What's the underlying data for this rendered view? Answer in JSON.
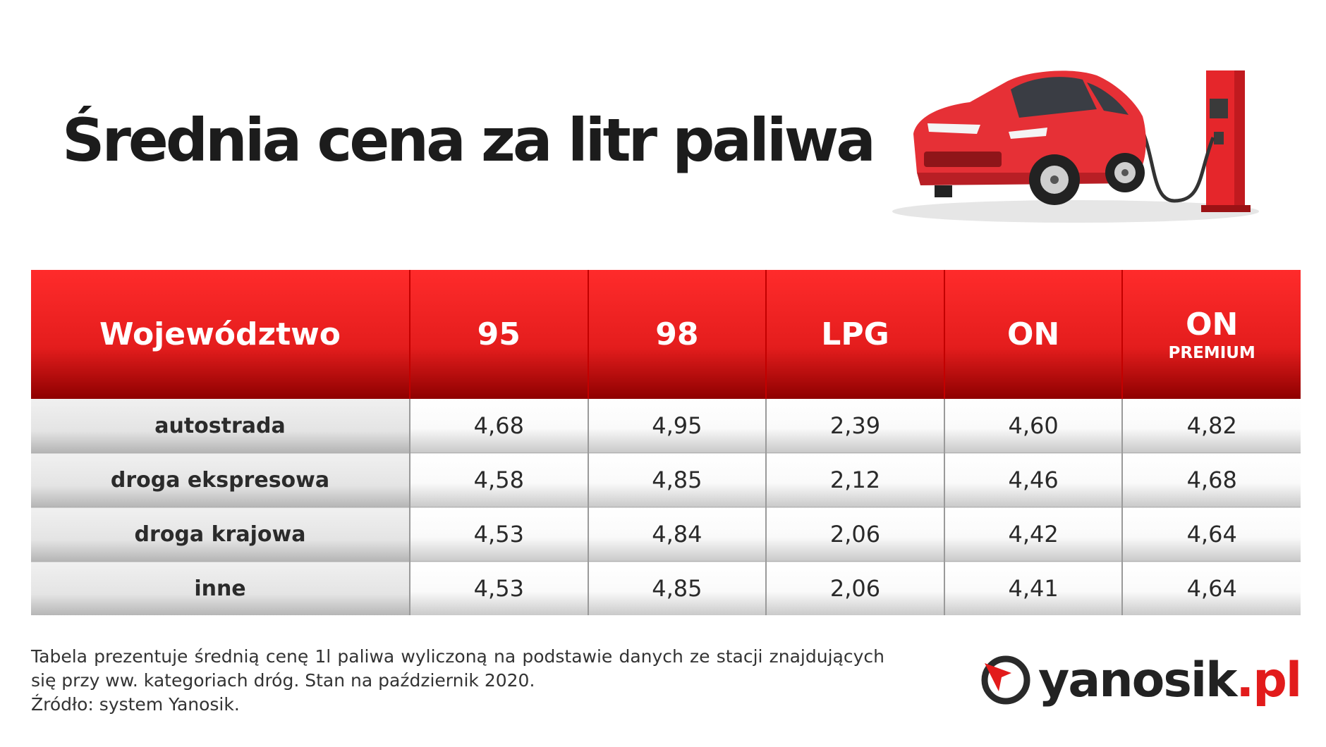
{
  "title": "Średnia cena za litr paliwa",
  "table": {
    "headers": [
      {
        "label": "Województwo",
        "sub": ""
      },
      {
        "label": "95",
        "sub": ""
      },
      {
        "label": "98",
        "sub": ""
      },
      {
        "label": "LPG",
        "sub": ""
      },
      {
        "label": "ON",
        "sub": ""
      },
      {
        "label": "ON",
        "sub": "PREMIUM"
      }
    ],
    "rows": [
      {
        "name": "autostrada",
        "values": [
          "4,68",
          "4,95",
          "2,39",
          "4,60",
          "4,82"
        ]
      },
      {
        "name": "droga ekspresowa",
        "values": [
          "4,58",
          "4,85",
          "2,12",
          "4,46",
          "4,68"
        ]
      },
      {
        "name": "droga krajowa",
        "values": [
          "4,53",
          "4,84",
          "2,06",
          "4,42",
          "4,64"
        ]
      },
      {
        "name": "inne",
        "values": [
          "4,53",
          "4,85",
          "2,06",
          "4,41",
          "4,64"
        ]
      }
    ]
  },
  "chart_data": {
    "type": "table",
    "title": "Średnia cena za litr paliwa",
    "columns": [
      "Województwo",
      "95",
      "98",
      "LPG",
      "ON",
      "ON PREMIUM"
    ],
    "rows": [
      [
        "autostrada",
        4.68,
        4.95,
        2.39,
        4.6,
        4.82
      ],
      [
        "droga ekspresowa",
        4.58,
        4.85,
        2.12,
        4.46,
        4.68
      ],
      [
        "droga krajowa",
        4.53,
        4.84,
        2.06,
        4.42,
        4.64
      ],
      [
        "inne",
        4.53,
        4.85,
        2.06,
        4.41,
        4.64
      ]
    ]
  },
  "footnote": {
    "line1": "Tabela prezentuje średnią cenę 1l paliwa wyliczoną na podstawie danych ze stacji znajdujących się przy ww. kategoriach dróg. Stan na październik 2020.",
    "line2": "Źródło: system Yanosik."
  },
  "logo": {
    "name": "yanosik",
    "tld": ".pl",
    "icon": "yanosik-logo-icon"
  },
  "illustration": {
    "icon": "electric-car-charging-icon"
  },
  "colors": {
    "header_red": "#e41d1d",
    "header_dark": "#8e0000",
    "logo_red": "#e21b1b",
    "title": "#1c1c1c"
  }
}
